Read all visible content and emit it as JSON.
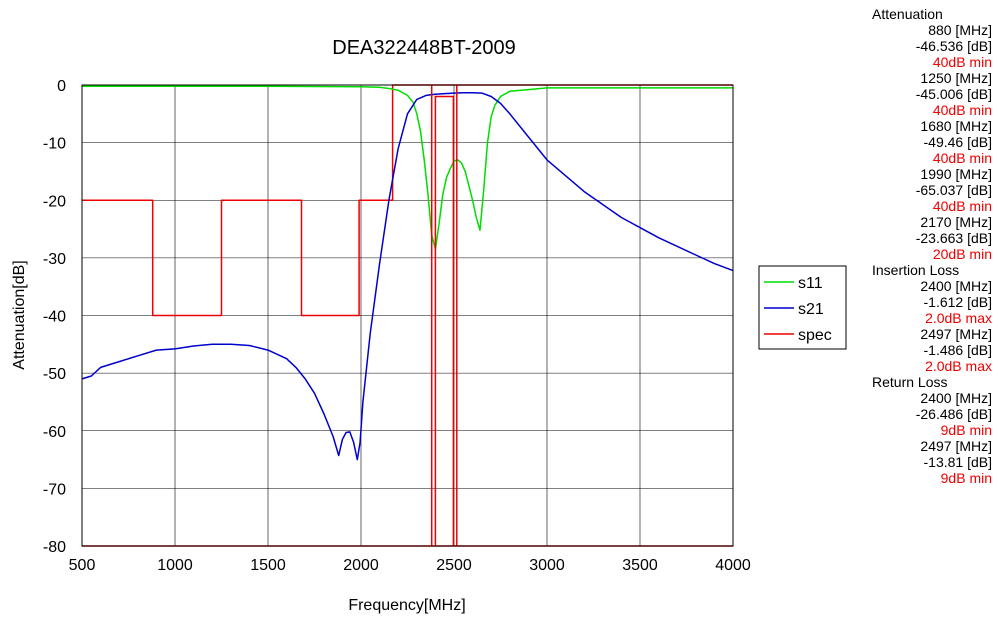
{
  "chart_data": {
    "type": "line",
    "title": "DEA322448BT-2009",
    "xlabel": "Frequency[MHz]",
    "ylabel": "Attenuation[dB]",
    "xlim": [
      500,
      4000
    ],
    "ylim": [
      -80,
      0
    ],
    "xticks": [
      500,
      1000,
      1500,
      2000,
      2500,
      3000,
      3500,
      4000
    ],
    "yticks": [
      0,
      -10,
      -20,
      -30,
      -40,
      -50,
      -60,
      -70,
      -80
    ],
    "grid": true,
    "legend_position": "right",
    "series": [
      {
        "name": "s11",
        "color": "#00dd00",
        "x": [
          500,
          1000,
          1500,
          2000,
          2100,
          2150,
          2200,
          2250,
          2280,
          2300,
          2320,
          2340,
          2360,
          2380,
          2400,
          2420,
          2440,
          2460,
          2480,
          2500,
          2520,
          2540,
          2560,
          2580,
          2600,
          2620,
          2640,
          2660,
          2680,
          2700,
          2720,
          2750,
          2800,
          2900,
          3000,
          3500,
          4000
        ],
        "values": [
          -0.2,
          -0.2,
          -0.2,
          -0.3,
          -0.4,
          -0.6,
          -0.9,
          -1.8,
          -3,
          -5,
          -8,
          -13,
          -19,
          -26,
          -28.5,
          -24,
          -19,
          -16,
          -14.5,
          -13.2,
          -13,
          -13.5,
          -15,
          -17.5,
          -20,
          -23,
          -25.2,
          -18,
          -10,
          -5.5,
          -3.5,
          -2,
          -1.1,
          -0.8,
          -0.5,
          -0.5,
          -0.5
        ]
      },
      {
        "name": "s21",
        "color": "#0000cc",
        "x": [
          500,
          550,
          600,
          700,
          800,
          900,
          1000,
          1100,
          1200,
          1300,
          1400,
          1500,
          1600,
          1650,
          1700,
          1750,
          1800,
          1850,
          1880,
          1900,
          1920,
          1940,
          1960,
          1980,
          1995,
          2010,
          2050,
          2100,
          2150,
          2200,
          2250,
          2300,
          2350,
          2400,
          2450,
          2500,
          2550,
          2600,
          2650,
          2700,
          2750,
          2800,
          2900,
          3000,
          3200,
          3400,
          3600,
          3800,
          3900,
          4000
        ],
        "values": [
          -51,
          -50.5,
          -49,
          -48,
          -47,
          -46,
          -45.8,
          -45.3,
          -45,
          -45,
          -45.2,
          -46,
          -47.5,
          -49,
          -51,
          -53.5,
          -57,
          -61,
          -64.3,
          -61.5,
          -60.3,
          -60.2,
          -62,
          -65,
          -62,
          -55,
          -43,
          -31,
          -20,
          -11,
          -5,
          -2.5,
          -1.8,
          -1.6,
          -1.5,
          -1.4,
          -1.35,
          -1.35,
          -1.4,
          -2,
          -3.2,
          -5,
          -9,
          -13,
          -18.5,
          -23,
          -26.5,
          -29.5,
          -31,
          -32.2
        ]
      },
      {
        "name": "spec",
        "color": "#ee0000",
        "x": [
          500,
          880,
          880,
          1250,
          1250,
          1680,
          1680,
          1990,
          1990,
          2170,
          2170,
          4000
        ],
        "values": [
          -20,
          -20,
          -40,
          -40,
          -20,
          -20,
          -40,
          -40,
          -20,
          -20,
          0,
          0
        ]
      }
    ],
    "spec_marks": [
      {
        "x": [
          2380,
          2380
        ],
        "values": [
          -80,
          0
        ]
      },
      {
        "x": [
          2400,
          2400,
          2497,
          2497
        ],
        "values": [
          -80,
          -2,
          -2,
          -80
        ]
      },
      {
        "x": [
          2515,
          2515
        ],
        "values": [
          -80,
          0
        ]
      }
    ]
  },
  "side_panel": {
    "sections": [
      {
        "heading": "Attenuation",
        "entries": [
          {
            "freq": "880 [MHz]",
            "value": "-46.536 [dB]",
            "spec": "40dB min"
          },
          {
            "freq": "1250 [MHz]",
            "value": "-45.006 [dB]",
            "spec": "40dB min"
          },
          {
            "freq": "1680 [MHz]",
            "value": "-49.46 [dB]",
            "spec": "40dB min"
          },
          {
            "freq": "1990 [MHz]",
            "value": "-65.037 [dB]",
            "spec": "40dB min"
          },
          {
            "freq": "2170 [MHz]",
            "value": "-23.663 [dB]",
            "spec": "20dB min"
          }
        ]
      },
      {
        "heading": "Insertion Loss",
        "entries": [
          {
            "freq": "2400 [MHz]",
            "value": "-1.612 [dB]",
            "spec": "2.0dB max"
          },
          {
            "freq": "2497 [MHz]",
            "value": "-1.486 [dB]",
            "spec": "2.0dB max"
          }
        ]
      },
      {
        "heading": "Return Loss",
        "entries": [
          {
            "freq": "2400 [MHz]",
            "value": "-26.486 [dB]",
            "spec": "9dB min"
          },
          {
            "freq": "2497 [MHz]",
            "value": "-13.81 [dB]",
            "spec": "9dB min"
          }
        ]
      }
    ],
    "spec_color": "#ee0000"
  }
}
